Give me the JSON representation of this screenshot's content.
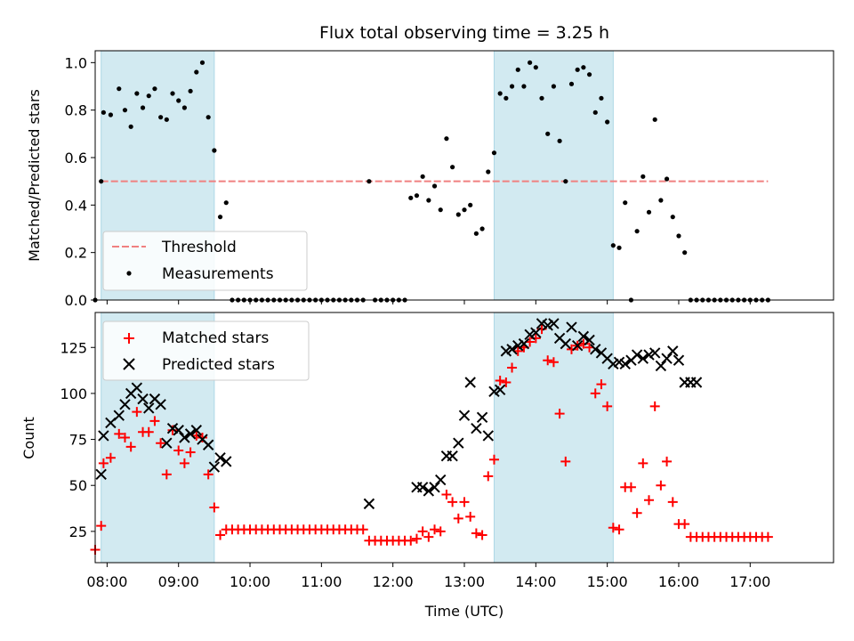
{
  "title": "Flux total observing time = 3.25 h",
  "colors": {
    "band": "#add8e6",
    "threshold": "#f08080",
    "measurements": "#000000",
    "matched": "#ff0000",
    "predicted": "#000000"
  },
  "chart_data": [
    {
      "type": "scatter",
      "ylabel": "Matched/Predicted stars",
      "ylim": [
        0,
        1.05
      ],
      "yticks": [
        0.0,
        0.2,
        0.4,
        0.6,
        0.8,
        1.0
      ],
      "ytick_labels": [
        "0.0",
        "0.2",
        "0.4",
        "0.6",
        "0.8",
        "1.0"
      ],
      "xlim": [
        "07:50",
        "18:10"
      ],
      "grid": false,
      "legend": {
        "placement": "lower-left",
        "entries": [
          "Threshold",
          "Measurements"
        ]
      },
      "observing_windows": [
        [
          "07:55",
          "09:30"
        ],
        [
          "13:25",
          "15:05"
        ]
      ],
      "threshold": {
        "name": "Threshold",
        "value": 0.5,
        "x": [
          "07:55",
          "17:15"
        ],
        "style": "dashed"
      },
      "series": [
        {
          "name": "Measurements",
          "marker": "dot",
          "x": [
            "07:50",
            "07:55",
            "07:57",
            "08:03",
            "08:10",
            "08:15",
            "08:20",
            "08:25",
            "08:30",
            "08:35",
            "08:40",
            "08:45",
            "08:50",
            "08:55",
            "09:00",
            "09:05",
            "09:10",
            "09:15",
            "09:20",
            "09:25",
            "09:30",
            "09:35",
            "09:40",
            "09:45",
            "09:50",
            "09:55",
            "10:00",
            "10:05",
            "10:10",
            "10:15",
            "10:20",
            "10:25",
            "10:30",
            "10:35",
            "10:40",
            "10:45",
            "10:50",
            "10:55",
            "11:00",
            "11:05",
            "11:10",
            "11:15",
            "11:20",
            "11:25",
            "11:30",
            "11:35",
            "11:40",
            "11:45",
            "11:50",
            "11:55",
            "12:00",
            "12:05",
            "12:10",
            "12:15",
            "12:20",
            "12:25",
            "12:30",
            "12:35",
            "12:40",
            "12:45",
            "12:50",
            "12:55",
            "13:00",
            "13:05",
            "13:10",
            "13:15",
            "13:20",
            "13:25",
            "13:30",
            "13:35",
            "13:40",
            "13:45",
            "13:50",
            "13:55",
            "14:00",
            "14:05",
            "14:10",
            "14:15",
            "14:20",
            "14:25",
            "14:30",
            "14:35",
            "14:40",
            "14:45",
            "14:50",
            "14:55",
            "15:00",
            "15:05",
            "15:10",
            "15:15",
            "15:20",
            "15:25",
            "15:30",
            "15:35",
            "15:40",
            "15:45",
            "15:50",
            "15:55",
            "16:00",
            "16:05",
            "16:10",
            "16:15",
            "16:20",
            "16:25",
            "16:30",
            "16:35",
            "16:40",
            "16:45",
            "16:50",
            "16:55",
            "17:00",
            "17:05",
            "17:10",
            "17:15"
          ],
          "y": [
            0.0,
            0.5,
            0.79,
            0.78,
            0.89,
            0.8,
            0.73,
            0.87,
            0.81,
            0.86,
            0.89,
            0.77,
            0.76,
            0.87,
            0.84,
            0.81,
            0.88,
            0.96,
            1.0,
            0.77,
            0.63,
            0.35,
            0.41,
            0.0,
            0.0,
            0.0,
            0.0,
            0.0,
            0.0,
            0.0,
            0.0,
            0.0,
            0.0,
            0.0,
            0.0,
            0.0,
            0.0,
            0.0,
            0.0,
            0.0,
            0.0,
            0.0,
            0.0,
            0.0,
            0.0,
            0.0,
            0.5,
            0.0,
            0.0,
            0.0,
            0.0,
            0.0,
            0.0,
            0.43,
            0.44,
            0.52,
            0.42,
            0.48,
            0.38,
            0.68,
            0.56,
            0.36,
            0.38,
            0.4,
            0.28,
            0.3,
            0.54,
            0.62,
            0.87,
            0.85,
            0.9,
            0.97,
            0.9,
            1.0,
            0.98,
            0.85,
            0.7,
            0.9,
            0.67,
            0.5,
            0.91,
            0.97,
            0.98,
            0.95,
            0.79,
            0.85,
            0.75,
            0.23,
            0.22,
            0.41,
            0.0,
            0.29,
            0.52,
            0.37,
            0.76,
            0.42,
            0.51,
            0.35,
            0.27,
            0.2,
            0.0,
            0.0,
            0.0,
            0.0,
            0.0,
            0.0,
            0.0,
            0.0,
            0.0,
            0.0,
            0.0,
            0.0,
            0.0,
            0.0
          ]
        }
      ]
    },
    {
      "type": "scatter",
      "xlabel": "Time (UTC)",
      "ylabel": "Count",
      "ylim": [
        8,
        144
      ],
      "yticks": [
        25,
        50,
        75,
        100,
        125
      ],
      "ytick_labels": [
        "25",
        "50",
        "75",
        "100",
        "125"
      ],
      "xlim": [
        "07:50",
        "18:10"
      ],
      "xticks": [
        "08:00",
        "09:00",
        "10:00",
        "11:00",
        "12:00",
        "13:00",
        "14:00",
        "15:00",
        "16:00",
        "17:00"
      ],
      "grid": false,
      "legend": {
        "placement": "upper-left",
        "entries": [
          "Matched stars",
          "Predicted stars"
        ]
      },
      "observing_windows": [
        [
          "07:55",
          "09:30"
        ],
        [
          "13:25",
          "15:05"
        ]
      ],
      "series": [
        {
          "name": "Matched stars",
          "marker": "plus",
          "x": [
            "07:50",
            "07:55",
            "07:57",
            "08:03",
            "08:10",
            "08:15",
            "08:20",
            "08:25",
            "08:30",
            "08:35",
            "08:40",
            "08:45",
            "08:50",
            "08:55",
            "09:00",
            "09:05",
            "09:10",
            "09:15",
            "09:20",
            "09:25",
            "09:30",
            "09:35",
            "09:40",
            "09:45",
            "09:50",
            "09:55",
            "10:00",
            "10:05",
            "10:10",
            "10:15",
            "10:20",
            "10:25",
            "10:30",
            "10:35",
            "10:40",
            "10:45",
            "10:50",
            "10:55",
            "11:00",
            "11:05",
            "11:10",
            "11:15",
            "11:20",
            "11:25",
            "11:30",
            "11:35",
            "11:40",
            "11:45",
            "11:50",
            "11:55",
            "12:00",
            "12:05",
            "12:10",
            "12:15",
            "12:20",
            "12:25",
            "12:30",
            "12:35",
            "12:40",
            "12:45",
            "12:50",
            "12:55",
            "13:00",
            "13:05",
            "13:10",
            "13:15",
            "13:20",
            "13:25",
            "13:30",
            "13:35",
            "13:40",
            "13:45",
            "13:50",
            "13:55",
            "14:00",
            "14:05",
            "14:10",
            "14:15",
            "14:20",
            "14:25",
            "14:30",
            "14:35",
            "14:40",
            "14:45",
            "14:50",
            "14:55",
            "15:00",
            "15:05",
            "15:10",
            "15:15",
            "15:20",
            "15:25",
            "15:30",
            "15:35",
            "15:40",
            "15:45",
            "15:50",
            "15:55",
            "16:00",
            "16:05",
            "16:10",
            "16:15",
            "16:20",
            "16:25",
            "16:30",
            "16:35",
            "16:40",
            "16:45",
            "16:50",
            "16:55",
            "17:00",
            "17:05",
            "17:10",
            "17:15"
          ],
          "y": [
            15,
            28,
            62,
            65,
            78,
            76,
            71,
            90,
            79,
            79,
            85,
            73,
            56,
            80,
            69,
            62,
            68,
            77,
            76,
            56,
            38,
            23,
            26,
            26,
            26,
            26,
            26,
            26,
            26,
            26,
            26,
            26,
            26,
            26,
            26,
            26,
            26,
            26,
            26,
            26,
            26,
            26,
            26,
            26,
            26,
            26,
            20,
            20,
            20,
            20,
            20,
            20,
            20,
            20,
            21,
            25,
            22,
            26,
            25,
            45,
            41,
            32,
            41,
            33,
            24,
            23,
            55,
            64,
            107,
            106,
            114,
            123,
            125,
            128,
            130,
            135,
            118,
            117,
            89,
            63,
            124,
            126,
            127,
            125,
            100,
            105,
            93,
            27,
            26,
            49,
            49,
            35,
            62,
            42,
            93,
            50,
            63,
            41,
            29,
            29,
            22,
            22,
            22,
            22,
            22,
            22,
            22,
            22,
            22,
            22,
            22,
            22,
            22,
            22
          ]
        },
        {
          "name": "Predicted stars",
          "marker": "x",
          "x": [
            "07:55",
            "07:57",
            "08:03",
            "08:10",
            "08:15",
            "08:20",
            "08:25",
            "08:30",
            "08:35",
            "08:40",
            "08:45",
            "08:50",
            "08:55",
            "09:00",
            "09:05",
            "09:10",
            "09:15",
            "09:20",
            "09:25",
            "09:30",
            "09:35",
            "09:40",
            "11:40",
            "12:20",
            "12:25",
            "12:30",
            "12:35",
            "12:40",
            "12:45",
            "12:50",
            "12:55",
            "13:00",
            "13:05",
            "13:10",
            "13:15",
            "13:20",
            "13:25",
            "13:30",
            "13:35",
            "13:40",
            "13:45",
            "13:50",
            "13:55",
            "14:00",
            "14:05",
            "14:10",
            "14:15",
            "14:20",
            "14:25",
            "14:30",
            "14:35",
            "14:40",
            "14:45",
            "14:50",
            "14:55",
            "15:00",
            "15:05",
            "15:10",
            "15:15",
            "15:20",
            "15:25",
            "15:30",
            "15:35",
            "15:40",
            "15:45",
            "15:50",
            "15:55",
            "16:00",
            "16:05",
            "16:10",
            "16:15"
          ],
          "y": [
            56,
            77,
            84,
            88,
            94,
            100,
            103,
            97,
            92,
            97,
            94,
            73,
            81,
            80,
            76,
            78,
            80,
            75,
            72,
            60,
            65,
            63,
            40,
            49,
            49,
            47,
            49,
            53,
            66,
            66,
            73,
            88,
            106,
            81,
            87,
            77,
            101,
            102,
            123,
            124,
            126,
            127,
            132,
            133,
            138,
            137,
            138,
            130,
            127,
            136,
            126,
            131,
            129,
            124,
            122,
            119,
            116,
            117,
            116,
            118,
            121,
            119,
            121,
            122,
            115,
            119,
            123,
            118,
            106,
            106,
            106
          ]
        }
      ]
    }
  ]
}
